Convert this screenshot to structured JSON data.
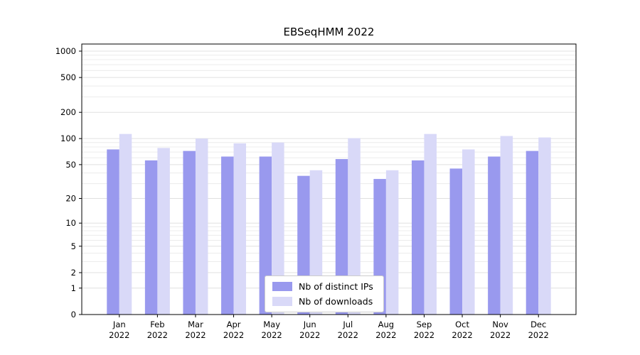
{
  "chart_data": {
    "type": "bar",
    "title": "EBSeqHMM 2022",
    "categories": [
      "Jan",
      "Feb",
      "Mar",
      "Apr",
      "May",
      "Jun",
      "Jul",
      "Aug",
      "Sep",
      "Oct",
      "Nov",
      "Dec"
    ],
    "x_year_label": "2022",
    "series": [
      {
        "name": "Nb of distinct IPs",
        "color": "#9999ee",
        "values": [
          75,
          56,
          72,
          62,
          62,
          37,
          58,
          34,
          56,
          45,
          62,
          72
        ]
      },
      {
        "name": "Nb of downloads",
        "color": "#d9d9f8",
        "values": [
          113,
          78,
          100,
          88,
          90,
          43,
          101,
          43,
          113,
          75,
          107,
          103
        ]
      }
    ],
    "y_ticks": [
      0,
      1,
      2,
      5,
      10,
      20,
      50,
      100,
      200,
      500,
      1000
    ],
    "y_scale": "log1p",
    "ylim": [
      0,
      1000
    ],
    "xlabel": "",
    "ylabel": "",
    "grid": true,
    "legend_position": "bottom-center"
  },
  "colors": {
    "background": "#ffffff",
    "grid_major": "#e0e0e0",
    "grid_minor": "#ececec",
    "axis": "#000000",
    "text": "#000000",
    "legend_border": "#cccccc"
  }
}
